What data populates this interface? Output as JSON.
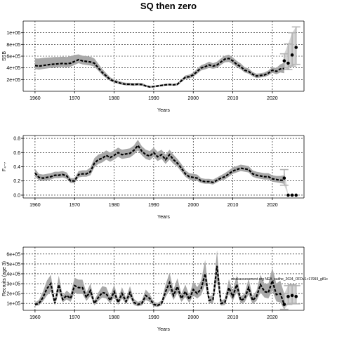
{
  "title": "SQ then zero",
  "chart_data": [
    {
      "type": "line",
      "panel": "ssb",
      "xlabel": "Years",
      "ylabel": "SSB",
      "xlim": [
        1957,
        2028
      ],
      "ylim": [
        0,
        1200000
      ],
      "xticks": [
        1960,
        1970,
        1980,
        1990,
        2000,
        2010,
        2020
      ],
      "xtick_labels": [
        "1960",
        "1970",
        "1980",
        "1990",
        "2000",
        "2010",
        "2020"
      ],
      "yticks": [
        200000,
        400000,
        600000,
        800000,
        1000000
      ],
      "ytick_labels": [
        "2e+05",
        "4e+05",
        "6e+05",
        "8e+05",
        "1e+06"
      ],
      "grid": true,
      "x": [
        1960,
        1961,
        1962,
        1963,
        1964,
        1965,
        1966,
        1967,
        1968,
        1969,
        1970,
        1971,
        1972,
        1973,
        1974,
        1975,
        1976,
        1977,
        1978,
        1979,
        1980,
        1981,
        1982,
        1983,
        1984,
        1985,
        1986,
        1987,
        1988,
        1989,
        1990,
        1991,
        1992,
        1993,
        1994,
        1995,
        1996,
        1997,
        1998,
        1999,
        2000,
        2001,
        2002,
        2003,
        2004,
        2005,
        2006,
        2007,
        2008,
        2009,
        2010,
        2011,
        2012,
        2013,
        2014,
        2015,
        2016,
        2017,
        2018,
        2019,
        2020,
        2021,
        2022,
        2023
      ],
      "estimate": [
        440000,
        430000,
        440000,
        450000,
        460000,
        465000,
        470000,
        475000,
        470000,
        480000,
        510000,
        540000,
        520000,
        510000,
        500000,
        480000,
        400000,
        320000,
        260000,
        200000,
        170000,
        150000,
        130000,
        120000,
        120000,
        115000,
        120000,
        115000,
        90000,
        75000,
        80000,
        90000,
        100000,
        110000,
        115000,
        110000,
        120000,
        180000,
        240000,
        250000,
        280000,
        340000,
        400000,
        420000,
        450000,
        430000,
        450000,
        500000,
        550000,
        560000,
        520000,
        460000,
        420000,
        360000,
        340000,
        290000,
        260000,
        270000,
        280000,
        310000,
        360000,
        340000,
        380000,
        390000
      ],
      "lower": [
        380000,
        370000,
        380000,
        390000,
        400000,
        405000,
        410000,
        415000,
        410000,
        420000,
        450000,
        480000,
        460000,
        450000,
        440000,
        420000,
        350000,
        280000,
        225000,
        175000,
        145000,
        130000,
        110000,
        100000,
        100000,
        95000,
        100000,
        95000,
        75000,
        60000,
        65000,
        75000,
        85000,
        95000,
        100000,
        95000,
        100000,
        155000,
        210000,
        220000,
        245000,
        300000,
        355000,
        375000,
        400000,
        385000,
        400000,
        450000,
        495000,
        500000,
        465000,
        410000,
        375000,
        320000,
        300000,
        255000,
        225000,
        235000,
        245000,
        270000,
        315000,
        290000,
        320000,
        310000
      ],
      "upper": [
        560000,
        560000,
        570000,
        575000,
        580000,
        585000,
        585000,
        590000,
        585000,
        600000,
        620000,
        630000,
        610000,
        600000,
        590000,
        560000,
        470000,
        380000,
        310000,
        240000,
        200000,
        180000,
        160000,
        145000,
        145000,
        140000,
        145000,
        140000,
        110000,
        92000,
        97000,
        107000,
        117000,
        127000,
        132000,
        127000,
        140000,
        205000,
        270000,
        285000,
        320000,
        385000,
        445000,
        470000,
        505000,
        480000,
        505000,
        560000,
        610000,
        625000,
        580000,
        520000,
        475000,
        410000,
        390000,
        330000,
        300000,
        310000,
        320000,
        355000,
        410000,
        400000,
        460000,
        490000
      ],
      "projection_x": [
        2023,
        2024,
        2025,
        2026
      ],
      "projection_points": [
        520000,
        480000,
        620000,
        750000
      ],
      "projection_lower": [
        400000,
        370000,
        430000,
        460000
      ],
      "projection_upper": [
        640000,
        810000,
        1000000,
        1100000
      ]
    },
    {
      "type": "line",
      "panel": "fishing-mortality",
      "xlabel": "Years",
      "ylabel": "F₄₋₇",
      "xlim": [
        1957,
        2028
      ],
      "ylim": [
        -0.04,
        0.84
      ],
      "xticks": [
        1960,
        1970,
        1980,
        1990,
        2000,
        2010,
        2020
      ],
      "xtick_labels": [
        "1960",
        "1970",
        "1980",
        "1990",
        "2000",
        "2010",
        "2020"
      ],
      "yticks": [
        0.0,
        0.2,
        0.4,
        0.6,
        0.8
      ],
      "ytick_labels": [
        "0.0",
        "0.2",
        "0.4",
        "0.6",
        "0.8"
      ],
      "grid": true,
      "x": [
        1960,
        1961,
        1962,
        1963,
        1964,
        1965,
        1966,
        1967,
        1968,
        1969,
        1970,
        1971,
        1972,
        1973,
        1974,
        1975,
        1976,
        1977,
        1978,
        1979,
        1980,
        1981,
        1982,
        1983,
        1984,
        1985,
        1986,
        1987,
        1988,
        1989,
        1990,
        1991,
        1992,
        1993,
        1994,
        1995,
        1996,
        1997,
        1998,
        1999,
        2000,
        2001,
        2002,
        2003,
        2004,
        2005,
        2006,
        2007,
        2008,
        2009,
        2010,
        2011,
        2012,
        2013,
        2014,
        2015,
        2016,
        2017,
        2018,
        2019,
        2020,
        2021,
        2022,
        2023
      ],
      "estimate": [
        0.31,
        0.25,
        0.24,
        0.25,
        0.26,
        0.28,
        0.28,
        0.29,
        0.27,
        0.2,
        0.2,
        0.29,
        0.3,
        0.3,
        0.33,
        0.45,
        0.5,
        0.52,
        0.56,
        0.53,
        0.56,
        0.6,
        0.57,
        0.58,
        0.59,
        0.63,
        0.7,
        0.62,
        0.57,
        0.55,
        0.6,
        0.54,
        0.57,
        0.5,
        0.57,
        0.5,
        0.45,
        0.38,
        0.3,
        0.26,
        0.25,
        0.24,
        0.2,
        0.19,
        0.19,
        0.18,
        0.21,
        0.24,
        0.26,
        0.3,
        0.34,
        0.36,
        0.38,
        0.37,
        0.36,
        0.3,
        0.28,
        0.27,
        0.26,
        0.26,
        0.23,
        0.22,
        0.21,
        0.21
      ],
      "lower": [
        0.26,
        0.21,
        0.2,
        0.21,
        0.22,
        0.24,
        0.24,
        0.25,
        0.23,
        0.17,
        0.17,
        0.25,
        0.26,
        0.26,
        0.28,
        0.39,
        0.44,
        0.46,
        0.5,
        0.47,
        0.5,
        0.54,
        0.51,
        0.52,
        0.53,
        0.57,
        0.63,
        0.56,
        0.51,
        0.49,
        0.54,
        0.48,
        0.51,
        0.44,
        0.5,
        0.44,
        0.4,
        0.33,
        0.26,
        0.22,
        0.21,
        0.2,
        0.17,
        0.16,
        0.16,
        0.15,
        0.18,
        0.21,
        0.22,
        0.26,
        0.3,
        0.32,
        0.34,
        0.33,
        0.32,
        0.26,
        0.24,
        0.23,
        0.22,
        0.22,
        0.19,
        0.18,
        0.17,
        0.16
      ],
      "upper": [
        0.37,
        0.3,
        0.29,
        0.3,
        0.31,
        0.33,
        0.33,
        0.34,
        0.32,
        0.24,
        0.24,
        0.34,
        0.35,
        0.35,
        0.39,
        0.52,
        0.57,
        0.59,
        0.63,
        0.6,
        0.63,
        0.67,
        0.64,
        0.65,
        0.66,
        0.7,
        0.78,
        0.69,
        0.64,
        0.62,
        0.67,
        0.61,
        0.64,
        0.57,
        0.64,
        0.57,
        0.51,
        0.44,
        0.35,
        0.31,
        0.3,
        0.29,
        0.24,
        0.23,
        0.23,
        0.22,
        0.25,
        0.28,
        0.31,
        0.35,
        0.39,
        0.41,
        0.43,
        0.42,
        0.41,
        0.35,
        0.33,
        0.32,
        0.31,
        0.31,
        0.28,
        0.27,
        0.27,
        0.28
      ],
      "projection_x": [
        2023,
        2024,
        2025,
        2026
      ],
      "projection_points": [
        0.24,
        0.0,
        0.0,
        0.0
      ],
      "projection_lower": [
        0.14,
        0.0,
        0.0,
        0.0
      ],
      "projection_upper": [
        0.36,
        0.0,
        0.0,
        0.0
      ]
    },
    {
      "type": "line",
      "panel": "recruits",
      "xlabel": "Years",
      "ylabel": "Recruits (age 3)",
      "xlim": [
        1957,
        2028
      ],
      "ylim": [
        30000,
        670000
      ],
      "xticks": [
        1960,
        1970,
        1980,
        1990,
        2000,
        2010,
        2020
      ],
      "xtick_labels": [
        "1960",
        "1970",
        "1980",
        "1990",
        "2000",
        "2010",
        "2020"
      ],
      "yticks": [
        100000,
        200000,
        300000,
        400000,
        500000,
        600000
      ],
      "ytick_labels": [
        "1e+05",
        "2e+05",
        "3e+05",
        "4e+05",
        "5e+05",
        "6e+05"
      ],
      "grid": true,
      "annotation": "stockassessment.org NEA_saithe_2024_OFDv1.r17993_g81c",
      "x": [
        1960,
        1961,
        1962,
        1963,
        1964,
        1965,
        1966,
        1967,
        1968,
        1969,
        1970,
        1971,
        1972,
        1973,
        1974,
        1975,
        1976,
        1977,
        1978,
        1979,
        1980,
        1981,
        1982,
        1983,
        1984,
        1985,
        1986,
        1987,
        1988,
        1989,
        1990,
        1991,
        1992,
        1993,
        1994,
        1995,
        1996,
        1997,
        1998,
        1999,
        2000,
        2001,
        2002,
        2003,
        2004,
        2005,
        2006,
        2007,
        2008,
        2009,
        2010,
        2011,
        2012,
        2013,
        2014,
        2015,
        2016,
        2017,
        2018,
        2019,
        2020,
        2021,
        2022,
        2023
      ],
      "estimate": [
        90000,
        100000,
        160000,
        250000,
        300000,
        100000,
        290000,
        140000,
        180000,
        150000,
        280000,
        260000,
        260000,
        160000,
        230000,
        100000,
        160000,
        210000,
        200000,
        130000,
        220000,
        110000,
        200000,
        120000,
        210000,
        110000,
        90000,
        100000,
        180000,
        150000,
        90000,
        80000,
        100000,
        220000,
        310000,
        180000,
        270000,
        150000,
        220000,
        140000,
        240000,
        200000,
        250000,
        400000,
        130000,
        140000,
        480000,
        100000,
        110000,
        260000,
        170000,
        290000,
        130000,
        150000,
        260000,
        130000,
        170000,
        290000,
        220000,
        210000,
        330000,
        190000,
        200000,
        90000
      ],
      "lower": [
        75000,
        80000,
        120000,
        180000,
        220000,
        80000,
        215000,
        110000,
        140000,
        115000,
        210000,
        195000,
        195000,
        125000,
        175000,
        80000,
        125000,
        160000,
        150000,
        100000,
        165000,
        85000,
        150000,
        95000,
        160000,
        85000,
        70000,
        80000,
        135000,
        115000,
        72000,
        64000,
        80000,
        165000,
        230000,
        135000,
        205000,
        115000,
        165000,
        105000,
        180000,
        150000,
        185000,
        290000,
        100000,
        105000,
        330000,
        78000,
        84000,
        195000,
        125000,
        215000,
        100000,
        112000,
        190000,
        95000,
        125000,
        210000,
        160000,
        150000,
        230000,
        120000,
        110000,
        40000
      ],
      "upper": [
        110000,
        135000,
        220000,
        330000,
        390000,
        130000,
        380000,
        180000,
        230000,
        195000,
        360000,
        340000,
        340000,
        210000,
        300000,
        130000,
        210000,
        275000,
        265000,
        170000,
        290000,
        145000,
        265000,
        155000,
        275000,
        145000,
        115000,
        130000,
        240000,
        195000,
        115000,
        105000,
        130000,
        290000,
        410000,
        240000,
        355000,
        195000,
        290000,
        185000,
        320000,
        265000,
        330000,
        540000,
        170000,
        185000,
        640000,
        130000,
        145000,
        345000,
        225000,
        385000,
        170000,
        200000,
        350000,
        175000,
        230000,
        390000,
        300000,
        300000,
        460000,
        300000,
        330000,
        200000
      ],
      "projection_x": [
        2023,
        2024,
        2025,
        2026
      ],
      "projection_points": [
        90000,
        170000,
        180000,
        170000
      ],
      "projection_lower": [
        40000,
        90000,
        100000,
        95000
      ],
      "projection_upper": [
        200000,
        280000,
        290000,
        280000
      ]
    }
  ]
}
